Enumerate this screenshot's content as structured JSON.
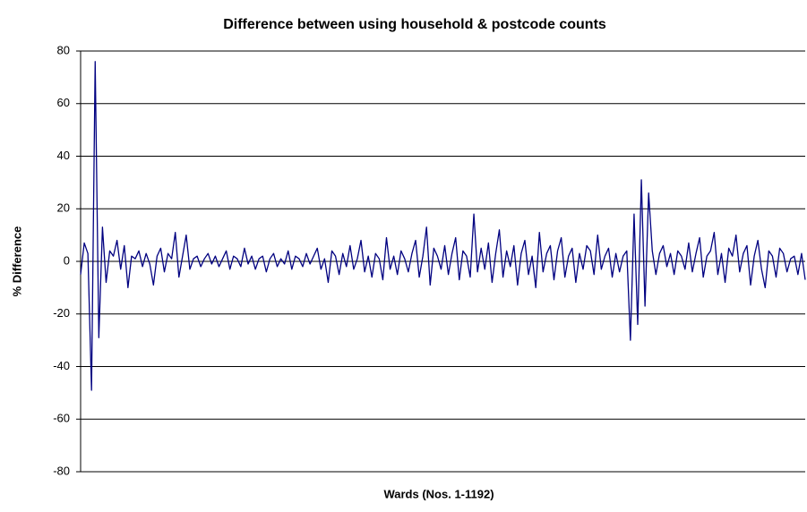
{
  "chart_data": {
    "type": "line",
    "title": "Difference between using household & postcode counts",
    "x_label": "Wards (Nos. 1-1192)",
    "y_label": "% Difference",
    "color": "#000080",
    "ylim": [
      -80,
      80
    ],
    "yticks": [
      -80,
      -60,
      -40,
      -20,
      0,
      20,
      40,
      60,
      80
    ],
    "grid": true,
    "values": [
      -5,
      7,
      3,
      -49,
      76,
      -29,
      13,
      -8,
      4,
      2,
      8,
      -3,
      6,
      -10,
      2,
      1,
      4,
      -2,
      3,
      -1,
      -9,
      2,
      5,
      -4,
      3,
      1,
      11,
      -6,
      2,
      10,
      -3,
      1,
      2,
      -2,
      1,
      3,
      -1,
      2,
      -2,
      1,
      4,
      -3,
      2,
      1,
      -2,
      5,
      -1,
      2,
      -3,
      1,
      2,
      -4,
      1,
      3,
      -2,
      1,
      -1,
      4,
      -3,
      2,
      1,
      -2,
      3,
      -1,
      2,
      5,
      -3,
      1,
      -8,
      4,
      2,
      -5,
      3,
      -2,
      6,
      -3,
      1,
      8,
      -4,
      2,
      -6,
      3,
      1,
      -7,
      9,
      -3,
      2,
      -5,
      4,
      1,
      -4,
      3,
      8,
      -6,
      2,
      13,
      -9,
      5,
      2,
      -3,
      6,
      -5,
      3,
      9,
      -7,
      4,
      2,
      -6,
      18,
      -4,
      5,
      -3,
      7,
      -8,
      3,
      12,
      -6,
      4,
      -2,
      6,
      -9,
      3,
      8,
      -5,
      2,
      -10,
      11,
      -4,
      3,
      6,
      -7,
      4,
      9,
      -6,
      2,
      5,
      -8,
      3,
      -3,
      6,
      4,
      -5,
      10,
      -3,
      2,
      5,
      -6,
      3,
      -4,
      2,
      4,
      -30,
      18,
      -24,
      31,
      -17,
      26,
      4,
      -5,
      3,
      6,
      -2,
      3,
      -5,
      4,
      2,
      -3,
      7,
      -4,
      3,
      9,
      -6,
      2,
      4,
      11,
      -5,
      3,
      -8,
      5,
      2,
      10,
      -4,
      3,
      6,
      -9,
      2,
      8,
      -3,
      -10,
      4,
      2,
      -6,
      5,
      3,
      -4,
      1,
      2,
      -5,
      3,
      -7
    ]
  }
}
